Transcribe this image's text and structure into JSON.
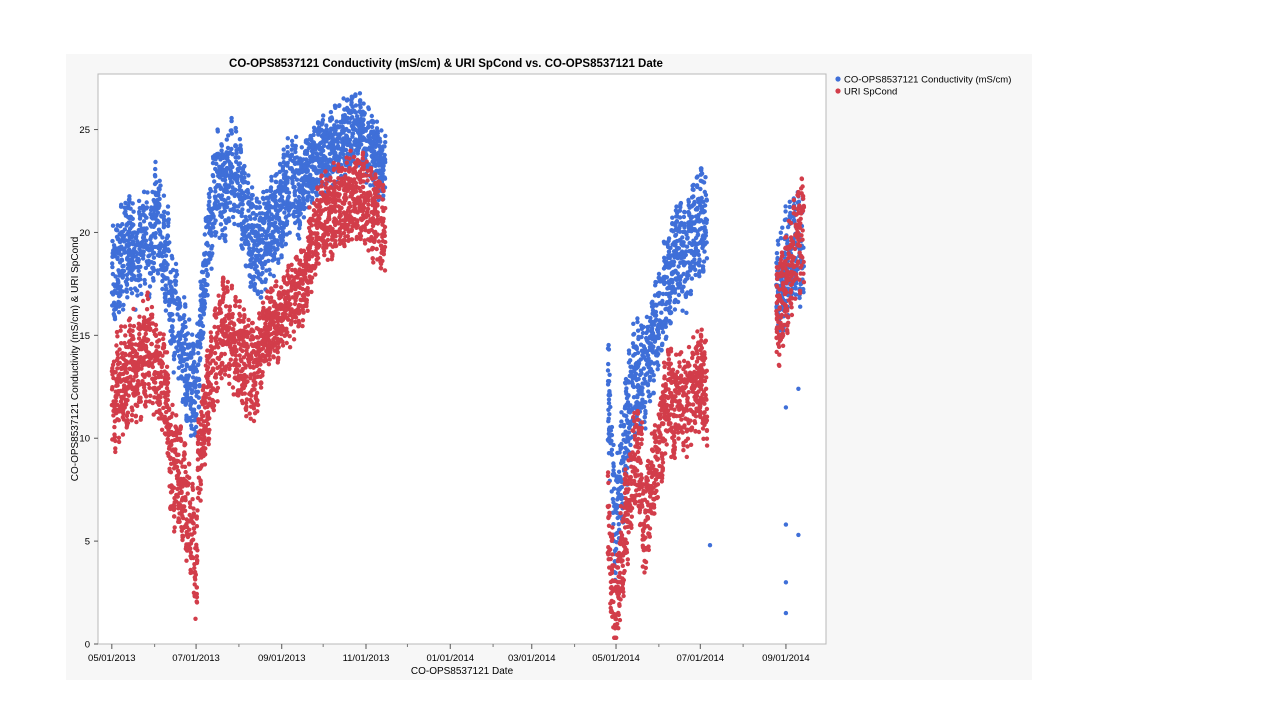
{
  "chart_data": {
    "type": "scatter",
    "title": "CO-OPS8537121 Conductivity (mS/cm) & URI SpCond vs. CO-OPS8537121 Date",
    "xlabel": "CO-OPS8537121 Date",
    "ylabel": "CO-OPS8537121 Conductivity (mS/cm) & URI SpCond",
    "x_ticks": [
      "05/01/2013",
      "07/01/2013",
      "09/01/2013",
      "11/01/2013",
      "01/01/2014",
      "03/01/2014",
      "05/01/2014",
      "07/01/2014",
      "09/01/2014"
    ],
    "xlim": [
      "2013-04-21",
      "2014-09-30"
    ],
    "y_ticks": [
      0,
      5,
      10,
      15,
      20,
      25
    ],
    "ylim": [
      0,
      27.7
    ],
    "grid": false,
    "legend_position": "top-right",
    "series": [
      {
        "name": "CO-OPS8537121 Conductivity (mS/cm)",
        "color": "#3f6fd8",
        "segments": [
          {
            "start": "2013-05-01",
            "end": "2013-05-20",
            "center": [
              17.5,
              18.5,
              19.0,
              19.5,
              18.0
            ],
            "spread": 2.0
          },
          {
            "start": "2013-05-20",
            "end": "2013-06-10",
            "center": [
              19.0,
              20.0,
              19.0,
              21.0,
              20.0,
              18.0
            ],
            "spread": 2.0
          },
          {
            "start": "2013-06-10",
            "end": "2013-07-01",
            "center": [
              19.0,
              16.0,
              15.5,
              14.0,
              13.0,
              12.0
            ],
            "spread": 2.3
          },
          {
            "start": "2013-07-01",
            "end": "2013-07-20",
            "center": [
              12.0,
              17.0,
              20.0,
              22.5,
              22.0
            ],
            "spread": 2.0
          },
          {
            "start": "2013-07-20",
            "end": "2013-08-15",
            "center": [
              21.5,
              23.0,
              22.0,
              20.0,
              19.0
            ],
            "spread": 2.0
          },
          {
            "start": "2013-08-15",
            "end": "2013-09-15",
            "center": [
              19.0,
              20.0,
              21.0,
              22.5,
              22.0
            ],
            "spread": 2.0
          },
          {
            "start": "2013-09-15",
            "end": "2013-11-15",
            "center": [
              22.5,
              23.5,
              24.0,
              24.5,
              25.0,
              24.0,
              23.0
            ],
            "spread": 1.5
          },
          {
            "start": "2014-04-25",
            "end": "2014-05-20",
            "center": [
              12.0,
              6.0,
              8.0,
              11.0,
              13.0,
              12.5
            ],
            "spread": 2.5
          },
          {
            "start": "2014-05-20",
            "end": "2014-06-10",
            "center": [
              12.5,
              14.0,
              15.5,
              17.0,
              18.0
            ],
            "spread": 2.0
          },
          {
            "start": "2014-06-10",
            "end": "2014-07-06",
            "center": [
              18.0,
              19.0,
              18.5,
              20.0,
              20.5,
              21.0
            ],
            "spread": 2.0
          },
          {
            "start": "2014-08-25",
            "end": "2014-09-14",
            "center": [
              17.0,
              18.0,
              19.0,
              19.5,
              19.0
            ],
            "spread": 2.2
          }
        ],
        "outliers": [
          {
            "x": "2014-07-08",
            "y": 4.8
          },
          {
            "x": "2014-09-01",
            "y": 11.5
          },
          {
            "x": "2014-09-01",
            "y": 5.8
          },
          {
            "x": "2014-09-01",
            "y": 3.0
          },
          {
            "x": "2014-09-01",
            "y": 1.5
          },
          {
            "x": "2014-09-10",
            "y": 12.4
          },
          {
            "x": "2014-09-10",
            "y": 5.3
          }
        ]
      },
      {
        "name": "URI SpCond",
        "color": "#d23d4a",
        "segments": [
          {
            "start": "2013-05-01",
            "end": "2013-05-20",
            "center": [
              11.5,
              12.5,
              13.0,
              13.5,
              13.0
            ],
            "spread": 2.2
          },
          {
            "start": "2013-05-20",
            "end": "2013-06-10",
            "center": [
              13.0,
              14.0,
              14.5,
              13.5,
              12.5,
              12.0
            ],
            "spread": 2.2
          },
          {
            "start": "2013-06-10",
            "end": "2013-07-02",
            "center": [
              10.5,
              8.5,
              8.0,
              7.0,
              5.5,
              3.0
            ],
            "spread": 2.2
          },
          {
            "start": "2013-07-02",
            "end": "2013-07-20",
            "center": [
              8.0,
              11.0,
              12.5,
              14.0,
              15.0
            ],
            "spread": 2.0
          },
          {
            "start": "2013-07-20",
            "end": "2013-08-15",
            "center": [
              15.5,
              15.0,
              14.0,
              13.5,
              13.0
            ],
            "spread": 2.0
          },
          {
            "start": "2013-08-15",
            "end": "2013-09-20",
            "center": [
              14.0,
              15.5,
              16.0,
              17.0,
              18.0
            ],
            "spread": 1.6
          },
          {
            "start": "2013-09-20",
            "end": "2013-11-15",
            "center": [
              19.0,
              20.5,
              21.0,
              21.5,
              22.0,
              21.0,
              20.0
            ],
            "spread": 1.8
          },
          {
            "start": "2014-04-25",
            "end": "2014-05-20",
            "center": [
              6.0,
              1.5,
              4.0,
              7.0,
              9.0,
              8.0
            ],
            "spread": 2.2
          },
          {
            "start": "2014-05-20",
            "end": "2014-06-10",
            "center": [
              5.0,
              7.0,
              9.0,
              11.0,
              13.0
            ],
            "spread": 2.0
          },
          {
            "start": "2014-06-10",
            "end": "2014-07-06",
            "center": [
              11.0,
              12.0,
              11.5,
              12.5,
              13.0,
              12.0
            ],
            "spread": 2.0
          },
          {
            "start": "2014-08-25",
            "end": "2014-09-14",
            "center": [
              15.5,
              17.0,
              18.5,
              19.5,
              20.0
            ],
            "spread": 2.2
          }
        ],
        "outliers": []
      }
    ]
  }
}
